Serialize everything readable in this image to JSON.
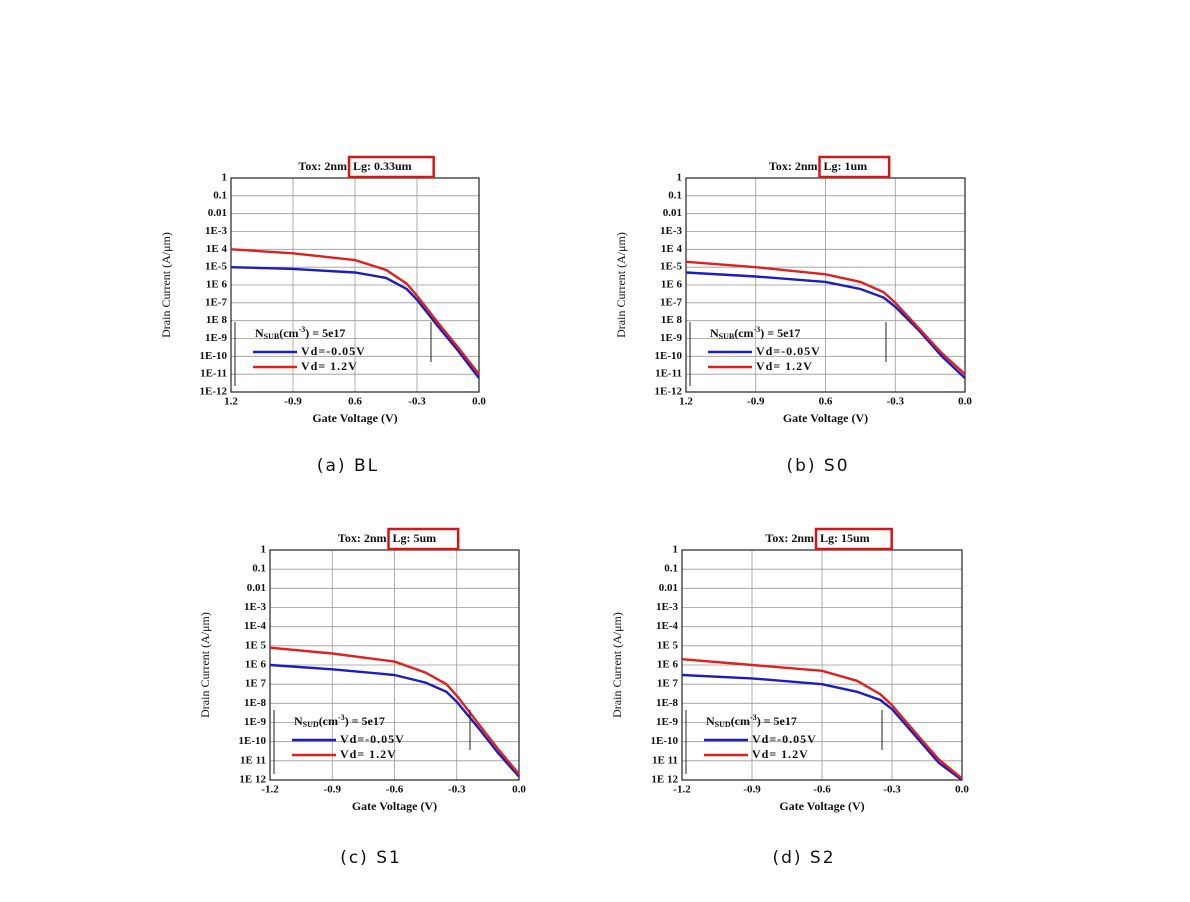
{
  "chart_data": [
    {
      "type": "line",
      "title": "Tox: 2nm",
      "title_boxed": "Lg: 0.33um",
      "caption": "(a) BL",
      "xlabel": "Gate Voltage (V)",
      "ylabel": "Drain Current (A/μm)",
      "log_y": true,
      "grid": true,
      "legend_corner": "lower left",
      "legend_title": {
        "main": "N",
        "sub": "SUB",
        "unit": "(cm",
        "sup": "-3",
        "rest": ") = 5e17"
      },
      "x": [
        -1.2,
        -0.9,
        -0.6,
        -0.45,
        -0.35,
        -0.3,
        -0.2,
        -0.1,
        0.0
      ],
      "series": [
        {
          "name": "Vd=-0.05V",
          "color": "#1c1cc0",
          "values": [
            1e-05,
            8e-06,
            5e-06,
            2.5e-06,
            6e-07,
            1.5e-07,
            5e-09,
            2e-10,
            6e-12
          ]
        },
        {
          "name": "Vd= 1.2V",
          "color": "#e02020",
          "values": [
            0.0001,
            6e-05,
            2.5e-05,
            7e-06,
            1.2e-06,
            2.5e-07,
            8e-09,
            3e-10,
            1e-11
          ]
        }
      ],
      "xlim": [
        -1.2,
        0.0
      ],
      "xticks": [
        {
          "value": -1.2,
          "label": "1.2"
        },
        -0.9,
        {
          "value": -0.6,
          "label": "0.6"
        },
        -0.3,
        {
          "value": 0,
          "label": "0.0"
        }
      ],
      "ylim": [
        1e-12,
        1
      ],
      "yticks": [
        1,
        0.1,
        0.01,
        {
          "value": 0.001,
          "label": "1E-3"
        },
        {
          "value": 0.0001,
          "label": "1E 4"
        },
        {
          "value": 1e-05,
          "label": "1E-5"
        },
        {
          "value": 1e-06,
          "label": "1E 6"
        },
        {
          "value": 1e-07,
          "label": "1E-7"
        },
        {
          "value": 1e-08,
          "label": "1E 8"
        },
        {
          "value": 1e-09,
          "label": "1E-9"
        },
        {
          "value": 1e-10,
          "label": "1E-10"
        },
        {
          "value": 1e-11,
          "label": "1E-11"
        },
        {
          "value": 1e-12,
          "label": "1E-12"
        }
      ]
    },
    {
      "type": "line",
      "title": "Tox: 2nm",
      "title_boxed": "Lg: 1um",
      "caption": "(b) S0",
      "xlabel": "Gate Voltage (V)",
      "ylabel": "Drain Current (A/μm)",
      "log_y": true,
      "grid": true,
      "legend_corner": "lower left",
      "legend_title": {
        "main": "N",
        "sub": "SUB",
        "unit": "(cm",
        "sup": "-3",
        "rest": ") = 5e17"
      },
      "x": [
        -1.2,
        -0.9,
        -0.6,
        -0.45,
        -0.35,
        -0.3,
        -0.2,
        -0.1,
        0.0
      ],
      "series": [
        {
          "name": "Vd=-0.05V",
          "color": "#1c1cc0",
          "values": [
            5e-06,
            3e-06,
            1.5e-06,
            6e-07,
            2e-07,
            6e-08,
            3e-09,
            1e-10,
            6e-12
          ]
        },
        {
          "name": "Vd= 1.2V",
          "color": "#e02020",
          "values": [
            2e-05,
            1e-05,
            4e-06,
            1.5e-06,
            4e-07,
            1e-07,
            4e-09,
            1.5e-10,
            1e-11
          ]
        }
      ],
      "xlim": [
        -1.2,
        0.0
      ],
      "xticks": [
        {
          "value": -1.2,
          "label": "1.2"
        },
        -0.9,
        {
          "value": -0.6,
          "label": "0.6"
        },
        -0.3,
        {
          "value": 0,
          "label": "0.0"
        }
      ],
      "ylim": [
        1e-12,
        1
      ],
      "yticks": [
        1,
        0.1,
        0.01,
        {
          "value": 0.001,
          "label": "1E-3"
        },
        {
          "value": 0.0001,
          "label": "1E 4"
        },
        {
          "value": 1e-05,
          "label": "1E-5"
        },
        {
          "value": 1e-06,
          "label": "1E 6"
        },
        {
          "value": 1e-07,
          "label": "1E-7"
        },
        {
          "value": 1e-08,
          "label": "1E 8"
        },
        {
          "value": 1e-09,
          "label": "1E-9"
        },
        {
          "value": 1e-10,
          "label": "1E-10"
        },
        {
          "value": 1e-11,
          "label": "1E-11"
        },
        {
          "value": 1e-12,
          "label": "1E-12"
        }
      ]
    },
    {
      "type": "line",
      "title": "Tox: 2nm",
      "title_boxed": "Lg: 5um",
      "caption": "(c) S1",
      "xlabel": "Gate Voltage (V)",
      "ylabel": "Drain Current (A/μm)",
      "log_y": true,
      "grid": true,
      "legend_corner": "lower left",
      "legend_title": {
        "main": "N",
        "sub": "SUD",
        "unit": "(cm",
        "sup": "-3",
        "rest": ") = 5e17"
      },
      "x": [
        -1.2,
        -0.9,
        -0.6,
        -0.45,
        -0.35,
        -0.3,
        -0.2,
        -0.1,
        0.0
      ],
      "series": [
        {
          "name": "Vd=-0.05V",
          "color": "#1c1cc0",
          "values": [
            1e-06,
            6e-07,
            3e-07,
            1.2e-07,
            4e-08,
            1.2e-08,
            6e-10,
            2.5e-11,
            1.5e-12
          ]
        },
        {
          "name": "Vd= 1.2V",
          "color": "#e02020",
          "values": [
            8e-06,
            4e-06,
            1.5e-06,
            4e-07,
            1e-07,
            2.5e-08,
            1e-09,
            4e-11,
            2e-12
          ]
        }
      ],
      "xlim": [
        -1.2,
        0.0
      ],
      "xticks": [
        -1.2,
        -0.9,
        -0.6,
        -0.3,
        {
          "value": 0,
          "label": "0.0"
        }
      ],
      "ylim": [
        1e-12,
        1
      ],
      "yticks": [
        1,
        0.1,
        0.01,
        {
          "value": 0.001,
          "label": "1E-3"
        },
        {
          "value": 0.0001,
          "label": "1E-4"
        },
        {
          "value": 1e-05,
          "label": "1E 5"
        },
        {
          "value": 1e-06,
          "label": "1E 6"
        },
        {
          "value": 1e-07,
          "label": "1E 7"
        },
        {
          "value": 1e-08,
          "label": "1E-8"
        },
        {
          "value": 1e-09,
          "label": "1E-9"
        },
        {
          "value": 1e-10,
          "label": "1E-10"
        },
        {
          "value": 1e-11,
          "label": "1E 11"
        },
        {
          "value": 1e-12,
          "label": "1E 12"
        }
      ]
    },
    {
      "type": "line",
      "title": "Tox: 2nm",
      "title_boxed": "Lg: 15um",
      "caption": "(d) S2",
      "xlabel": "Gate Voltage (V)",
      "ylabel": "Drain Current (A/μm)",
      "log_y": true,
      "grid": true,
      "legend_corner": "lower left",
      "legend_title": {
        "main": "N",
        "sub": "SUD",
        "unit": "(cm",
        "sup": "-3",
        "rest": ") = 5e17"
      },
      "x": [
        -1.2,
        -0.9,
        -0.6,
        -0.45,
        -0.35,
        -0.3,
        -0.2,
        -0.1,
        0.0
      ],
      "series": [
        {
          "name": "Vd=-0.05V",
          "color": "#1c1cc0",
          "values": [
            3e-07,
            2e-07,
            1e-07,
            4e-08,
            1.5e-08,
            5e-09,
            2e-10,
            8e-12,
            1e-12
          ]
        },
        {
          "name": "Vd= 1.2V",
          "color": "#e02020",
          "values": [
            2e-06,
            1e-06,
            5e-07,
            1.5e-07,
            3e-08,
            8e-09,
            3e-10,
            1.2e-11,
            1.2e-12
          ]
        }
      ],
      "xlim": [
        -1.2,
        0.0
      ],
      "xticks": [
        -1.2,
        -0.9,
        -0.6,
        -0.3,
        {
          "value": 0,
          "label": "0.0"
        }
      ],
      "ylim": [
        1e-12,
        1
      ],
      "yticks": [
        1,
        0.1,
        0.01,
        {
          "value": 0.001,
          "label": "1E-3"
        },
        {
          "value": 0.0001,
          "label": "1E-4"
        },
        {
          "value": 1e-05,
          "label": "1E 5"
        },
        {
          "value": 1e-06,
          "label": "1E 6"
        },
        {
          "value": 1e-07,
          "label": "1E 7"
        },
        {
          "value": 1e-08,
          "label": "1E-8"
        },
        {
          "value": 1e-09,
          "label": "1E-9"
        },
        {
          "value": 1e-10,
          "label": "1E-10"
        },
        {
          "value": 1e-11,
          "label": "1E 11"
        },
        {
          "value": 1e-12,
          "label": "1E 12"
        }
      ]
    }
  ]
}
